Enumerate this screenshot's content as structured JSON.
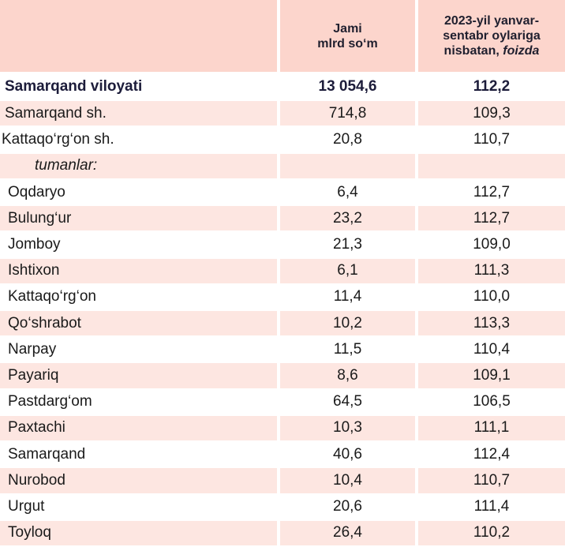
{
  "header": {
    "col1": "",
    "col2_line1": "Jami",
    "col2_line2": "mlrd so‘m",
    "col3_line1": "2023-yil yanvar-",
    "col3_line2": "sentabr oylariga",
    "col3_line3_prefix": "nisbatan, ",
    "col3_line3_italic": "foizda"
  },
  "total": {
    "name": "Samarqand viloyati",
    "value": "13 054,6",
    "percent": "112,2"
  },
  "cities": [
    {
      "name": "Samarqand sh.",
      "value": "714,8",
      "percent": "109,3"
    },
    {
      "name": "Kattaqo‘rg‘on sh.",
      "value": "20,8",
      "percent": "110,7"
    }
  ],
  "subheader": {
    "label": "tumanlar:"
  },
  "districts": [
    {
      "name": "Oqdaryo",
      "value": "6,4",
      "percent": "112,7"
    },
    {
      "name": "Bulung‘ur",
      "value": "23,2",
      "percent": "112,7"
    },
    {
      "name": "Jomboy",
      "value": "21,3",
      "percent": "109,0"
    },
    {
      "name": "Ishtixon",
      "value": "6,1",
      "percent": "111,3"
    },
    {
      "name": "Kattaqo‘rg‘on",
      "value": "11,4",
      "percent": "110,0"
    },
    {
      "name": "Qo‘shrabot",
      "value": "10,2",
      "percent": "113,3"
    },
    {
      "name": "Narpay",
      "value": "11,5",
      "percent": "110,4"
    },
    {
      "name": "Payariq",
      "value": "8,6",
      "percent": "109,1"
    },
    {
      "name": "Pastdarg‘om",
      "value": "64,5",
      "percent": "106,5"
    },
    {
      "name": "Paxtachi",
      "value": "10,3",
      "percent": "111,1"
    },
    {
      "name": "Samarqand",
      "value": "40,6",
      "percent": "112,4"
    },
    {
      "name": "Nurobod",
      "value": "10,4",
      "percent": "110,7"
    },
    {
      "name": "Urgut",
      "value": "20,6",
      "percent": "111,4"
    },
    {
      "name": "Toyloq",
      "value": "26,4",
      "percent": "110,2"
    }
  ]
}
